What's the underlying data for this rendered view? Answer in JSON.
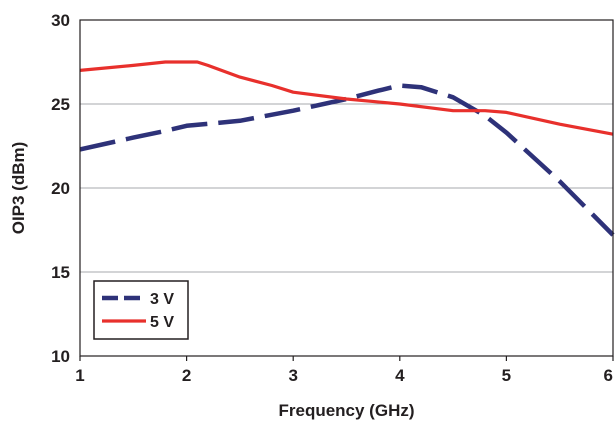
{
  "chart_data": {
    "type": "line",
    "title": "",
    "xlabel": "Frequency (GHz)",
    "ylabel": "OIP3 (dBm)",
    "xlim": [
      1,
      6
    ],
    "ylim": [
      10,
      30
    ],
    "xticks": [
      "1",
      "2",
      "3",
      "4",
      "5",
      "6"
    ],
    "yticks": [
      "10",
      "15",
      "20",
      "25",
      "30"
    ],
    "grid": "horizontal",
    "legend_position": "bottom-left",
    "series": [
      {
        "name": "3 V",
        "color": "#2e3279",
        "style": "dashed",
        "x": [
          1.0,
          1.5,
          1.8,
          2.0,
          2.5,
          3.0,
          3.5,
          3.8,
          4.0,
          4.2,
          4.5,
          4.8,
          5.0,
          5.5,
          6.0
        ],
        "y": [
          22.3,
          23.0,
          23.4,
          23.7,
          24.0,
          24.6,
          25.3,
          25.8,
          26.1,
          26.0,
          25.4,
          24.3,
          23.3,
          20.4,
          17.2
        ]
      },
      {
        "name": "5 V",
        "color": "#e8302c",
        "style": "solid",
        "x": [
          1.0,
          1.5,
          1.8,
          2.1,
          2.2,
          2.5,
          2.8,
          3.0,
          3.5,
          4.0,
          4.5,
          4.8,
          5.0,
          5.5,
          6.0
        ],
        "y": [
          27.0,
          27.3,
          27.5,
          27.5,
          27.3,
          26.6,
          26.1,
          25.7,
          25.3,
          25.0,
          24.6,
          24.6,
          24.5,
          23.8,
          23.2
        ]
      }
    ]
  }
}
